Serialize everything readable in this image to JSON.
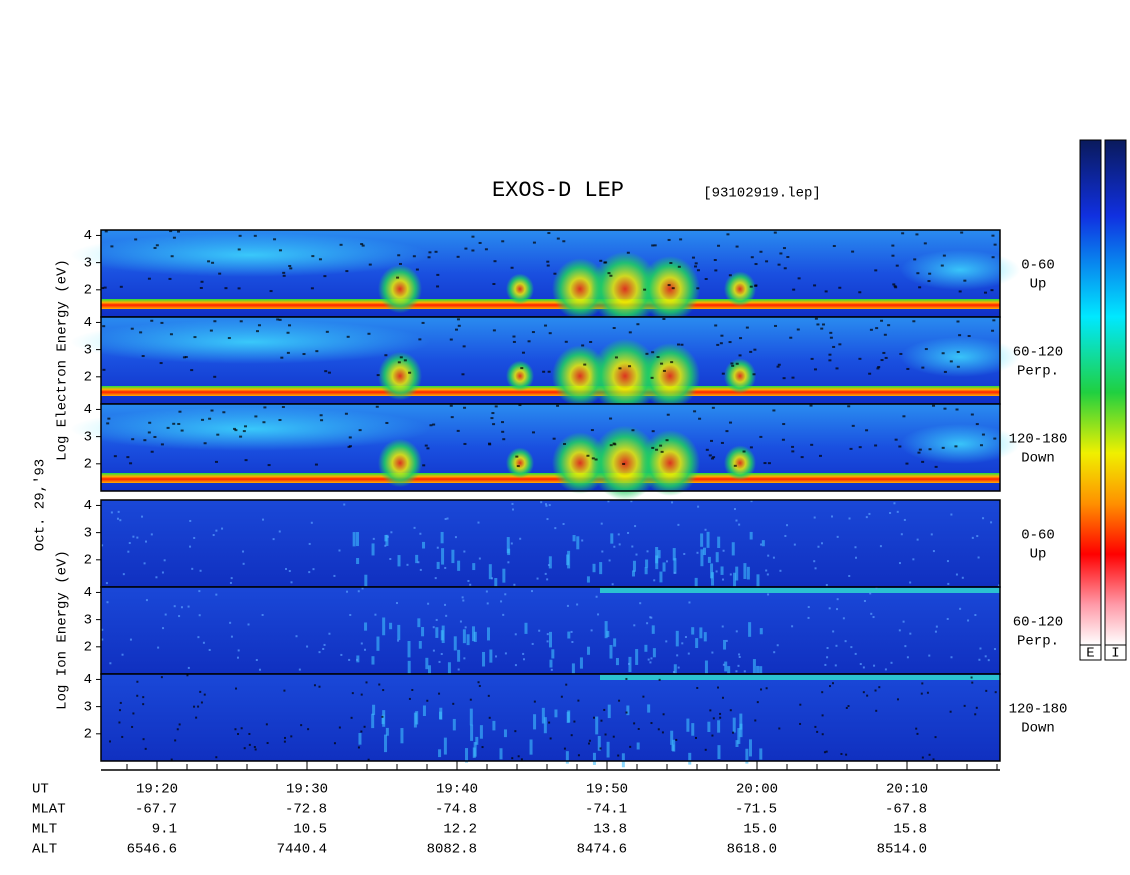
{
  "chart_data": {
    "type": "spectrogram",
    "title": "EXOS-D LEP",
    "subtitle": "[93102919.lep]",
    "electron_axis_label": "Log Electron Energy (eV)",
    "ion_axis_label": "Log Ion Energy (eV)",
    "date_label": "Oct. 29,'93",
    "panels": [
      {
        "label": "0-60",
        "sublabel": "Up"
      },
      {
        "label": "60-120",
        "sublabel": "Perp."
      },
      {
        "label": "120-180",
        "sublabel": "Down"
      },
      {
        "label": "0-60",
        "sublabel": "Up"
      },
      {
        "label": "60-120",
        "sublabel": "Perp."
      },
      {
        "label": "120-180",
        "sublabel": "Down"
      }
    ],
    "ylim": [
      1,
      4.2
    ],
    "yticks": [
      2,
      3,
      4
    ],
    "time_label": "UT",
    "categories": [
      "19:20",
      "19:30",
      "19:40",
      "19:50",
      "20:00",
      "20:10"
    ],
    "rows": [
      {
        "name": "MLAT",
        "values": [
          -67.7,
          -72.8,
          -74.8,
          -74.1,
          -71.5,
          -67.8
        ]
      },
      {
        "name": "MLT",
        "values": [
          9.1,
          10.5,
          12.2,
          13.8,
          15,
          15.8
        ],
        "value_labels": [
          "9.1",
          "10.5",
          "12.2",
          "13.8",
          "15.0",
          "15.8"
        ]
      },
      {
        "name": "ALT",
        "values": [
          6546.6,
          7440.4,
          8082.8,
          8474.6,
          8618,
          8514
        ],
        "value_labels": [
          "6546.6",
          "7440.4",
          "8082.8",
          "8474.6",
          "8618.0",
          "8514.0"
        ]
      }
    ],
    "colorbar_labels": [
      "E",
      "I"
    ]
  }
}
